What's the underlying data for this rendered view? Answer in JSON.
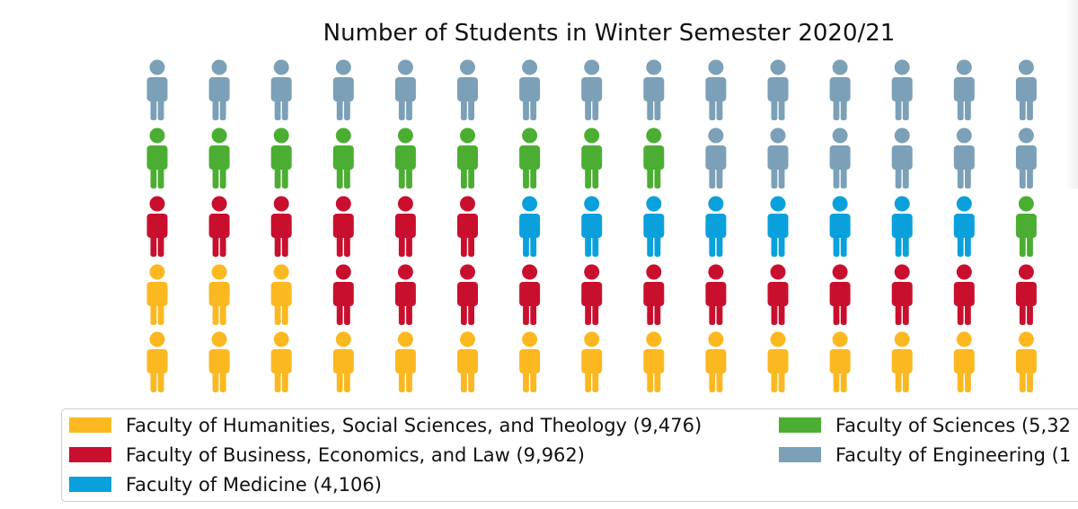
{
  "chart_data": {
    "type": "waffle",
    "title": "Number of Students in Winter Semester 2020/21",
    "rows": 5,
    "columns": 15,
    "fill_order": "bottom-up, left-to-right",
    "series": [
      {
        "name": "Faculty of Humanities, Social Sciences, and Theology (9,476)",
        "value": 9476,
        "icons": 18,
        "color": "#FBB820"
      },
      {
        "name": "Faculty of Business, Economics, and Law (9,962)",
        "value": 9962,
        "icons": 18,
        "color": "#C8102E"
      },
      {
        "name": "Faculty of Medicine (4,106)",
        "value": 4106,
        "icons": 8,
        "color": "#0AA0DC"
      },
      {
        "name": "Faculty of Sciences (5,32",
        "icons": 10,
        "color": "#4BAE33"
      },
      {
        "name": "Faculty of Engineering (1",
        "icons": 21,
        "color": "#7BA0B8"
      }
    ],
    "icon": "person-icon",
    "legend_position": "bottom"
  }
}
